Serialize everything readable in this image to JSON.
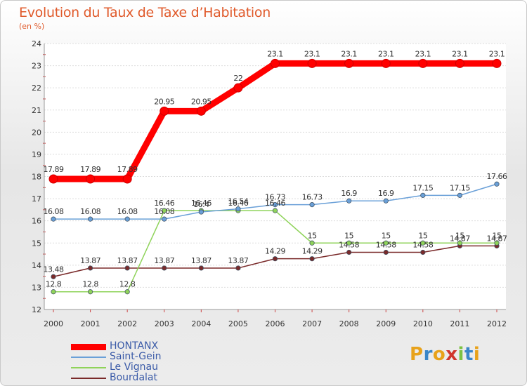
{
  "title": "Evolution du Taux de Taxe d’Habitation",
  "subtitle": "(en %)",
  "logo_text": "Proxiti",
  "chart_data": {
    "type": "line",
    "x": [
      "2000",
      "2001",
      "2002",
      "2003",
      "2004",
      "2005",
      "2006",
      "2007",
      "2008",
      "2009",
      "2010",
      "2011",
      "2012"
    ],
    "ylim": [
      12,
      24
    ],
    "yticks": [
      "12",
      "13",
      "14",
      "15",
      "16",
      "17",
      "18",
      "19",
      "20",
      "21",
      "22",
      "23",
      "24"
    ],
    "grid": "horizontal",
    "legend_position": "bottom-left",
    "series": [
      {
        "name": "HONTANX",
        "color": "#ff0000",
        "values": [
          17.89,
          17.89,
          17.89,
          20.95,
          20.95,
          22,
          23.1,
          23.1,
          23.1,
          23.1,
          23.1,
          23.1,
          23.1
        ],
        "labels": [
          "17.89",
          "17.89",
          "17.89",
          "20.95",
          "20.95",
          "22",
          "23.1",
          "23.1",
          "23.1",
          "23.1",
          "23.1",
          "23.1",
          "23.1"
        ]
      },
      {
        "name": "Saint-Gein",
        "color": "#6aa0d8",
        "values": [
          16.08,
          16.08,
          16.08,
          16.08,
          16.4,
          16.54,
          16.73,
          16.73,
          16.9,
          16.9,
          17.15,
          17.15,
          17.66
        ],
        "labels": [
          "16.08",
          "16.08",
          "16.08",
          "16.08",
          "16.4",
          "16.54",
          "16.73",
          "16.73",
          "16.9",
          "16.9",
          "17.15",
          "17.15",
          "17.66"
        ]
      },
      {
        "name": "Le Vignau",
        "color": "#8fd35a",
        "values": [
          12.8,
          12.8,
          12.8,
          16.46,
          16.46,
          16.46,
          16.46,
          15,
          15,
          15,
          15,
          15,
          15
        ],
        "labels": [
          "12.8",
          "12.8",
          "12.8",
          "16.46",
          "16.46",
          "16.46",
          "16.46",
          "15",
          "15",
          "15",
          "15",
          "15",
          "15"
        ]
      },
      {
        "name": "Bourdalat",
        "color": "#7a2a2a",
        "values": [
          13.48,
          13.87,
          13.87,
          13.87,
          13.87,
          13.87,
          14.29,
          14.29,
          14.58,
          14.58,
          14.58,
          14.87,
          14.87
        ],
        "labels": [
          "13.48",
          "13.87",
          "13.87",
          "13.87",
          "13.87",
          "13.87",
          "14.29",
          "14.29",
          "14.58",
          "14.58",
          "14.58",
          "14.87",
          "14.87"
        ]
      }
    ]
  }
}
